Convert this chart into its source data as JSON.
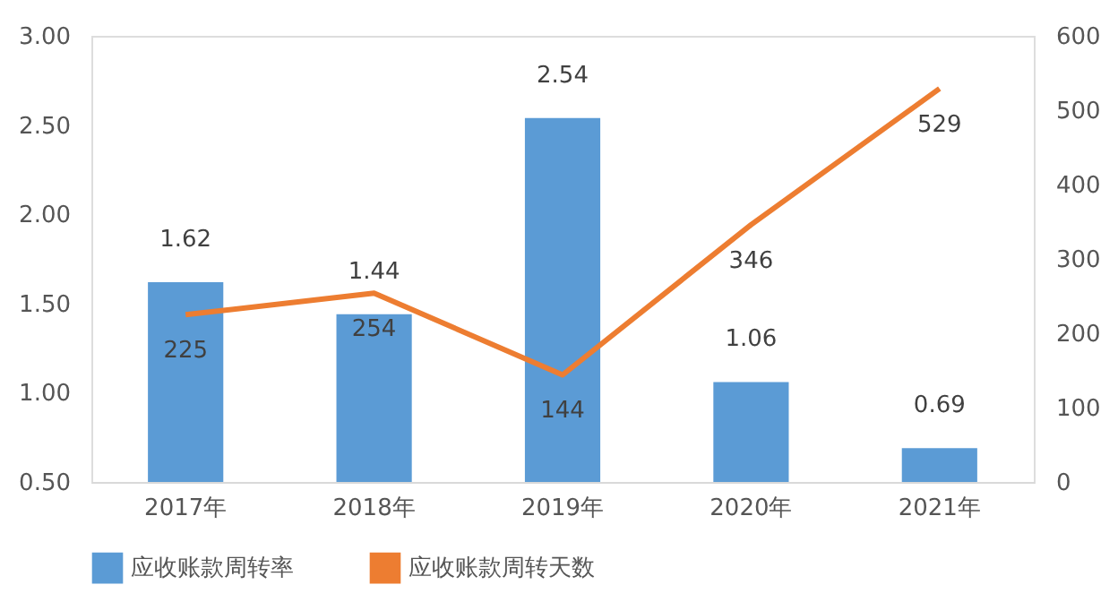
{
  "chart_data": {
    "type": "bar",
    "categories": [
      "2017年",
      "2018年",
      "2019年",
      "2020年",
      "2021年"
    ],
    "series": [
      {
        "name": "应收账款周转率",
        "type": "bar",
        "color": "#5b9bd5",
        "values": [
          1.62,
          1.44,
          2.54,
          1.06,
          0.69
        ]
      },
      {
        "name": "应收账款周转天数",
        "type": "line",
        "axis": "y2",
        "color": "#ed7d31",
        "values": [
          225,
          254,
          144,
          346,
          529
        ]
      }
    ],
    "ylim": [
      0.5,
      3.0
    ],
    "yticks": [
      {
        "value": 0.5,
        "label": "0.50"
      },
      {
        "value": 1.0,
        "label": "1.00"
      },
      {
        "value": 1.5,
        "label": "1.50"
      },
      {
        "value": 2.0,
        "label": "2.00"
      },
      {
        "value": 2.5,
        "label": "2.50"
      },
      {
        "value": 3.0,
        "label": "3.00"
      }
    ],
    "y2lim": [
      0,
      600
    ],
    "y2ticks": [
      0,
      100,
      200,
      300,
      400,
      500,
      600
    ],
    "data_labels": true,
    "grid": false,
    "legend": "bottom",
    "marker": "none",
    "line_style": "solid"
  }
}
